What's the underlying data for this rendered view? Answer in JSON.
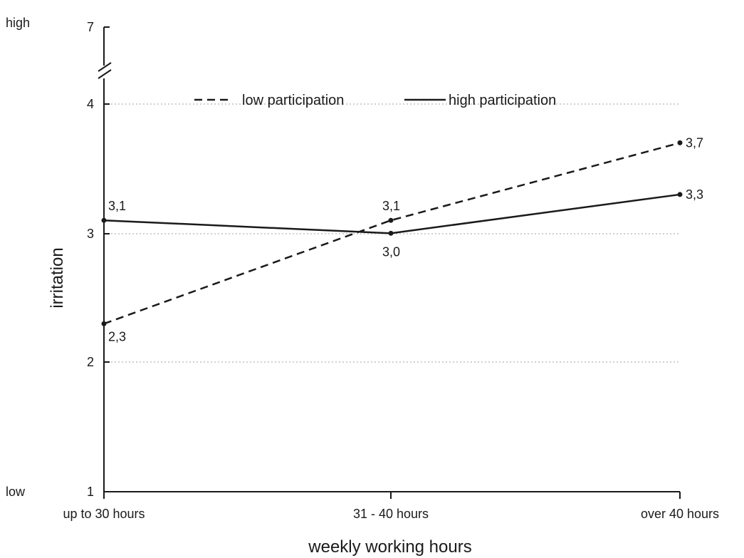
{
  "chart_data": {
    "type": "line",
    "categories": [
      "up to 30 hours",
      "31 - 40 hours",
      "over 40 hours"
    ],
    "xlabel": "weekly working hours",
    "ylabel": "irritation",
    "ylim": [
      1,
      7
    ],
    "y_axis_break": [
      4,
      7
    ],
    "y_ticks": [
      1,
      2,
      3,
      4,
      7
    ],
    "y_tick_labels": [
      "1",
      "2",
      "3",
      "4",
      "7"
    ],
    "y_end_labels": {
      "top": "high",
      "bottom": "low"
    },
    "grid": true,
    "legend_position": "top",
    "series": [
      {
        "name": "low participation",
        "style": "dashed",
        "values": [
          2.3,
          3.1,
          3.7
        ],
        "labels": [
          "2,3",
          "3,1",
          "3,7"
        ]
      },
      {
        "name": "high participation",
        "style": "solid",
        "values": [
          3.1,
          3.0,
          3.3
        ],
        "labels": [
          "3,1",
          "3,0",
          "3,3"
        ]
      }
    ],
    "colors": {
      "line": "#1a1a1a",
      "grid": "#b5b5b5"
    }
  }
}
